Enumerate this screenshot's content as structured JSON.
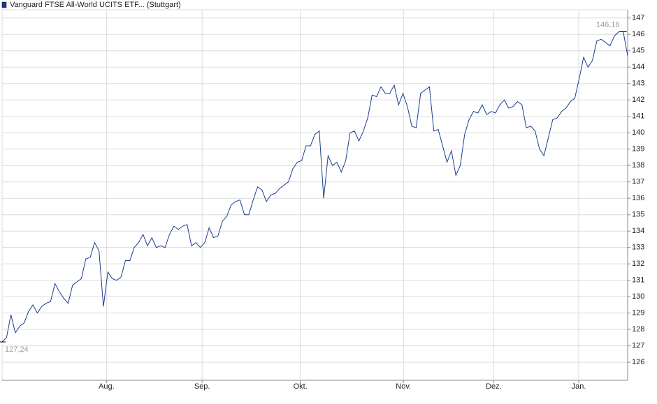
{
  "chart_data": {
    "type": "line",
    "series": [
      {
        "name": "Vanguard FTSE All-World UCITS ETF... (Stuttgart)",
        "color": "#1a3d8f",
        "values": [
          127.24,
          127.5,
          128.9,
          127.8,
          128.2,
          128.4,
          129.1,
          129.5,
          129.0,
          129.4,
          129.6,
          129.7,
          130.8,
          130.3,
          129.9,
          129.6,
          130.7,
          130.9,
          131.1,
          132.3,
          132.4,
          133.3,
          132.8,
          129.4,
          131.5,
          131.1,
          131.0,
          131.2,
          132.2,
          132.2,
          133.0,
          133.3,
          133.8,
          133.1,
          133.6,
          133.0,
          133.1,
          133.0,
          133.8,
          134.3,
          134.1,
          134.3,
          134.4,
          133.1,
          133.3,
          133.0,
          133.3,
          134.2,
          133.6,
          133.7,
          134.6,
          134.9,
          135.6,
          135.8,
          135.9,
          135.0,
          135.0,
          135.9,
          136.7,
          136.5,
          135.8,
          136.2,
          136.3,
          136.6,
          136.8,
          137.0,
          137.8,
          138.2,
          138.3,
          139.2,
          139.2,
          139.9,
          140.1,
          136.0,
          138.6,
          138.0,
          138.2,
          137.6,
          138.3,
          140.0,
          140.1,
          139.5,
          140.1,
          140.9,
          142.3,
          142.2,
          142.8,
          142.4,
          142.4,
          142.9,
          141.7,
          142.4,
          141.6,
          140.4,
          140.3,
          142.4,
          142.6,
          142.8,
          140.1,
          140.2,
          139.2,
          138.2,
          138.9,
          137.4,
          138.0,
          139.9,
          140.8,
          141.3,
          141.2,
          141.7,
          141.1,
          141.3,
          141.2,
          141.7,
          142.0,
          141.5,
          141.6,
          141.9,
          141.7,
          140.3,
          140.4,
          140.1,
          139.0,
          138.6,
          139.7,
          140.8,
          140.9,
          141.3,
          141.5,
          141.9,
          142.1,
          143.3,
          144.6,
          144.0,
          144.4,
          145.6,
          145.7,
          145.5,
          145.3,
          145.9,
          146.16,
          146.16,
          144.7
        ]
      }
    ],
    "xlim": [
      0,
      142
    ],
    "xticks": [
      {
        "value": 23.7,
        "label": "Aug."
      },
      {
        "value": 45.4,
        "label": "Sep."
      },
      {
        "value": 67.7,
        "label": "Okt."
      },
      {
        "value": 91.1,
        "label": "Nov."
      },
      {
        "value": 111.6,
        "label": "Dez."
      },
      {
        "value": 130.9,
        "label": "Jan."
      }
    ],
    "ylim": [
      124.9,
      147.5
    ],
    "yticks": [
      126,
      127,
      128,
      129,
      130,
      131,
      132,
      133,
      134,
      135,
      136,
      137,
      138,
      139,
      140,
      141,
      142,
      143,
      144,
      145,
      146,
      147
    ],
    "annotations": [
      {
        "value": 127.24,
        "label": "127,24"
      },
      {
        "value": 146.16,
        "label": "146,16"
      }
    ],
    "grid": true
  }
}
